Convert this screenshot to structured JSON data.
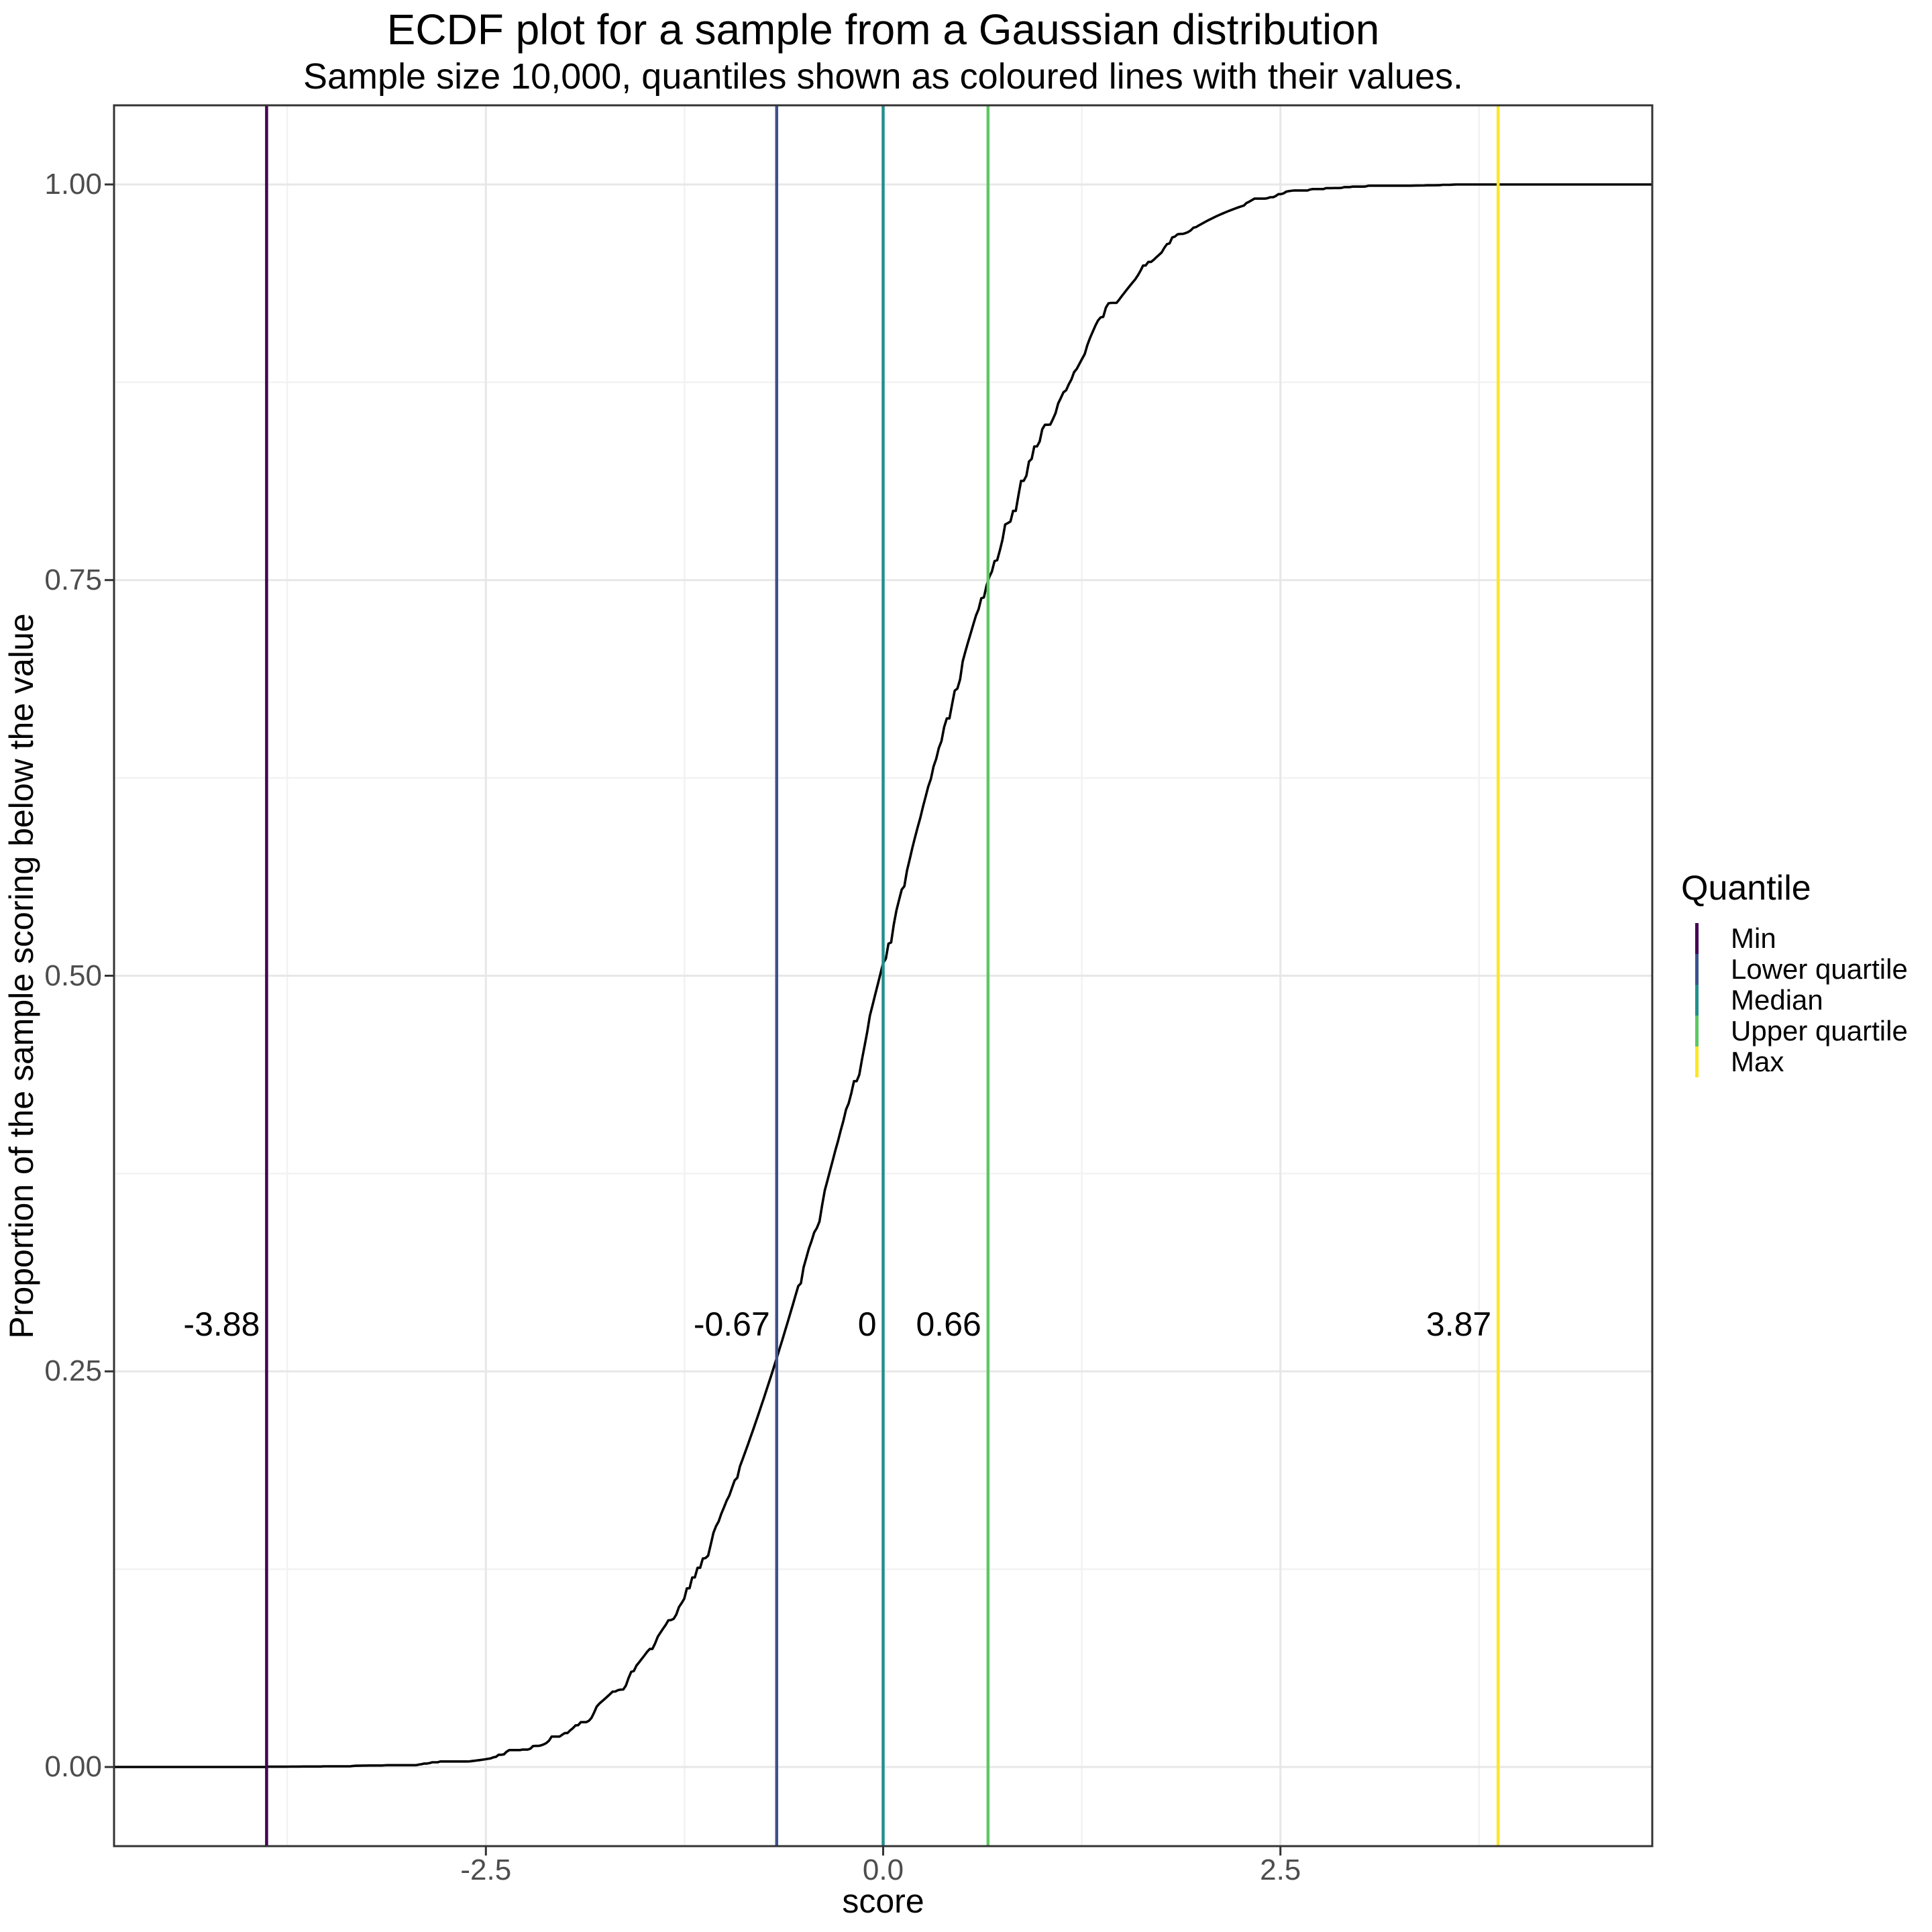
{
  "title": "ECDF plot for a sample from a Gaussian distribution",
  "subtitle": "Sample size 10,000, quantiles shown as coloured lines with their values.",
  "x_axis": {
    "label": "score",
    "tick_labels": [
      "-2.5",
      "0.0",
      "2.5"
    ]
  },
  "y_axis": {
    "label": "Proportion of the sample scoring below the value",
    "tick_labels": [
      "0.00",
      "0.25",
      "0.50",
      "0.75",
      "1.00"
    ]
  },
  "legend": {
    "title": "Quantile",
    "entries": [
      {
        "label": "Min",
        "color": "#440154"
      },
      {
        "label": "Lower quartile",
        "color": "#3B528B"
      },
      {
        "label": "Median",
        "color": "#21908C"
      },
      {
        "label": "Upper quartile",
        "color": "#5DC863"
      },
      {
        "label": "Max",
        "color": "#FDE725"
      }
    ]
  },
  "chart_data": {
    "type": "line",
    "subtype": "ecdf",
    "title": "ECDF plot for a sample from a Gaussian distribution",
    "subtitle": "Sample size 10,000, quantiles shown as coloured lines with their values.",
    "xlabel": "score",
    "ylabel": "Proportion of the sample scoring below the value",
    "distribution": "standard normal (Gaussian)",
    "sample_size": 10000,
    "curve": "empirical CDF of the sample; y = Phi(x), flat at 0 below the min and at 1 above the max",
    "xlim": [
      -4.84,
      4.84
    ],
    "ylim": [
      -0.05,
      1.05
    ],
    "x_major_ticks": [
      -2.5,
      0,
      2.5
    ],
    "x_tick_labels": [
      "-2.5",
      "0.0",
      "2.5"
    ],
    "x_minor_ticks": [
      -3.75,
      -1.25,
      1.25,
      3.75
    ],
    "y_major_ticks": [
      0,
      0.25,
      0.5,
      0.75,
      1
    ],
    "y_tick_labels": [
      "0.00",
      "0.25",
      "0.50",
      "0.75",
      "1.00"
    ],
    "y_minor_ticks": [
      0.125,
      0.375,
      0.625,
      0.875
    ],
    "grid": "major and minor, light grey on white, dark panel border",
    "legend_position": "right",
    "quantiles": [
      {
        "name": "Min",
        "value": -3.88,
        "label": "-3.88",
        "color": "#440154"
      },
      {
        "name": "Lower quartile",
        "value": -0.67,
        "label": "-0.67",
        "color": "#3B528B"
      },
      {
        "name": "Median",
        "value": 0,
        "label": "0",
        "color": "#21908C"
      },
      {
        "name": "Upper quartile",
        "value": 0.66,
        "label": "0.66",
        "color": "#5DC863"
      },
      {
        "name": "Max",
        "value": 3.87,
        "label": "3.87",
        "color": "#FDE725"
      }
    ],
    "key_points": [
      {
        "x": -3.88,
        "y": 0.0
      },
      {
        "x": -0.67,
        "y": 0.25
      },
      {
        "x": 0,
        "y": 0.5
      },
      {
        "x": 0.66,
        "y": 0.75
      },
      {
        "x": 3.87,
        "y": 1.0
      }
    ],
    "annotation_y": 0.28,
    "colors": {
      "curve": "#000000",
      "grid_major": "#E7E7E7",
      "grid_minor": "#F2F2F2",
      "panel_border": "#333333",
      "tick": "#333333",
      "tick_label": "#4D4D4D"
    }
  }
}
